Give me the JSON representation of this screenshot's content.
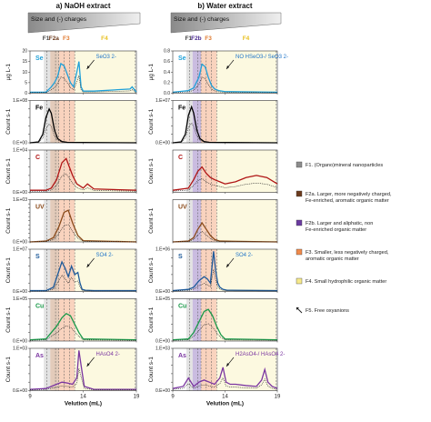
{
  "panels": [
    {
      "title": "a) NaOH extract",
      "size_bar_label": "Size and (-) charges"
    },
    {
      "title": "b) Water extract",
      "size_bar_label": "Size and (-) charges"
    }
  ],
  "fraction_labels": [
    "F1",
    "F2a",
    "F3",
    "F4",
    "F1",
    "F2b",
    "F3",
    "F4"
  ],
  "x_axis": {
    "label": "Velution (mL)",
    "ticks": [
      "9",
      "14",
      "19"
    ]
  },
  "legend": [
    {
      "key": "F1",
      "text": "F1. (Organo)mineral nanoparticles",
      "color": "#8c8c8c"
    },
    {
      "key": "F2a",
      "text": "F2a. Larger, more negatively charged, Fe-enriched, aromatic organic matter",
      "color": "#6b3a1c"
    },
    {
      "key": "F2b",
      "text": "F2b. Larger and aliphatic, non Fe-enriched organic matter",
      "color": "#6a3aa0"
    },
    {
      "key": "F3",
      "text": "F3. Smaller, less negatively charged, aromatic organic matter",
      "color": "#f08a4b"
    },
    {
      "key": "F4",
      "text": "F4. Small hydrophilic organic matter",
      "color": "#f6e98a"
    },
    {
      "key": "F5",
      "text": "F5. Free oxyanions",
      "color": "#222222"
    }
  ],
  "colors": {
    "Se": "#1fa0d8",
    "Fe": "#000000",
    "C": "#b01515",
    "UV": "#8a4a1a",
    "S": "#1e5a9a",
    "Cu": "#1a9a4a",
    "As": "#7a35a0",
    "F1_band": "#d9d9d9",
    "F2a_band": "#d9b9a3",
    "F2b_band": "#b8a6d6",
    "F3_band": "#f7c4a8",
    "F4_band": "#fbf7d6"
  },
  "chart_data": [
    {
      "type": "line",
      "title": "a) NaOH extract",
      "xlabel": "Velution (mL)",
      "xlim": [
        9,
        19
      ],
      "x_ticks": [
        9,
        14,
        19
      ],
      "rows": [
        {
          "element": "Se",
          "ylabel": "µg L-1",
          "yticks": [
            "0",
            "5",
            "10",
            "15",
            "20"
          ],
          "ylim": [
            0,
            20
          ],
          "annotation": "SeO3 2-",
          "x": [
            9,
            10.5,
            11.0,
            11.3,
            11.6,
            11.9,
            12.2,
            12.5,
            12.8,
            13.1,
            13.4,
            13.6,
            13.8,
            14.0,
            14.3,
            15,
            18.4,
            18.6,
            19
          ],
          "y": [
            0.5,
            0.5,
            3,
            5,
            8,
            14,
            13,
            9,
            5,
            3,
            10,
            15,
            3,
            1,
            1,
            1,
            2,
            3,
            0.5
          ]
        },
        {
          "element": "Fe",
          "ylabel": "Count s-1",
          "yticks": [
            "0.E+00",
            "2.E+08",
            "4.E+08",
            "6.E+08",
            "8.E+08",
            "1.E+08"
          ],
          "ylim": [
            0,
            1
          ],
          "x": [
            9,
            9.8,
            10.2,
            10.5,
            10.8,
            11.0,
            11.3,
            11.6,
            12.0,
            12.5,
            19
          ],
          "y": [
            0,
            0.02,
            0.2,
            0.6,
            0.8,
            0.7,
            0.3,
            0.1,
            0.03,
            0.01,
            0
          ]
        },
        {
          "element": "C",
          "ylabel": "Count s-1",
          "yticks": [
            "0.E+00",
            "2.E+02",
            "4.E+02",
            "6.E+02",
            "8.E+02",
            "1.E+04"
          ],
          "ylim": [
            0,
            1
          ],
          "x": [
            9,
            10.5,
            11.0,
            11.5,
            12.0,
            12.4,
            12.7,
            13.0,
            13.4,
            14.0,
            14.4,
            15,
            19
          ],
          "y": [
            0.05,
            0.05,
            0.1,
            0.3,
            0.7,
            0.8,
            0.6,
            0.4,
            0.2,
            0.1,
            0.2,
            0.08,
            0.05
          ]
        },
        {
          "element": "UV",
          "ylabel": "Count s-1",
          "yticks": [
            "0.E+00",
            "1.E+02",
            "2.E+02",
            "3.E+02",
            "4.E+02",
            "5.E+02",
            "6.E+02",
            "7.E+02",
            "8.E+02",
            "9.E+02",
            "1.E+03"
          ],
          "ylim": [
            0,
            1
          ],
          "x": [
            9,
            10.5,
            11.2,
            11.7,
            12.2,
            12.6,
            13.0,
            13.5,
            14.0,
            19
          ],
          "y": [
            0,
            0.02,
            0.1,
            0.35,
            0.7,
            0.75,
            0.45,
            0.15,
            0.03,
            0
          ]
        },
        {
          "element": "S",
          "ylabel": "Count s-1",
          "yticks": [
            "0.E+00",
            "2.E+06",
            "4.E+06",
            "6.E+06",
            "8.E+06",
            "1.E+07"
          ],
          "ylim": [
            0,
            1
          ],
          "annotation": "SO4 2-",
          "x": [
            9,
            10.5,
            11.2,
            11.6,
            12.0,
            12.3,
            12.6,
            12.9,
            13.2,
            13.5,
            13.7,
            13.9,
            14.2,
            15,
            19
          ],
          "y": [
            0.02,
            0.02,
            0.1,
            0.4,
            0.7,
            0.55,
            0.35,
            0.6,
            0.4,
            0.45,
            0.2,
            0.05,
            0.03,
            0.02,
            0.02
          ]
        },
        {
          "element": "Cu",
          "ylabel": "Count s-1",
          "yticks": [
            "0.E+00",
            "2.E+04",
            "4.E+04",
            "6.E+04",
            "8.E+04",
            "1.E+05"
          ],
          "ylim": [
            0,
            1
          ],
          "x": [
            9,
            10.5,
            11.0,
            11.5,
            12.0,
            12.4,
            12.8,
            13.2,
            13.6,
            14.0,
            19
          ],
          "y": [
            0.03,
            0.05,
            0.2,
            0.35,
            0.55,
            0.65,
            0.6,
            0.4,
            0.2,
            0.05,
            0.03
          ]
        },
        {
          "element": "As",
          "ylabel": "Count s-1",
          "yticks": [
            "0.E+00",
            "2.E+02",
            "4.E+02",
            "6.E+02",
            "8.E+02",
            "1.E+03"
          ],
          "ylim": [
            0,
            1
          ],
          "annotation": "HAsO4 2-",
          "x": [
            9,
            10.5,
            11.0,
            11.5,
            12.0,
            12.5,
            13.0,
            13.4,
            13.6,
            13.8,
            14.1,
            15,
            19
          ],
          "y": [
            0.03,
            0.05,
            0.1,
            0.15,
            0.2,
            0.18,
            0.15,
            0.3,
            0.95,
            0.6,
            0.1,
            0.03,
            0.03
          ]
        }
      ]
    },
    {
      "type": "line",
      "title": "b) Water extract",
      "xlabel": "Velution (mL)",
      "xlim": [
        9,
        19
      ],
      "x_ticks": [
        9,
        14,
        19
      ],
      "rows": [
        {
          "element": "Se",
          "ylabel": "µg L-1",
          "yticks": [
            "0.0",
            "0.2",
            "0.4",
            "0.6",
            "0.8"
          ],
          "ylim": [
            0,
            0.8
          ],
          "annotation": "NO HSeO3-/ SeO3 2-",
          "x": [
            9,
            10.5,
            11.0,
            11.5,
            11.8,
            12.1,
            12.4,
            12.7,
            13.0,
            13.4,
            14,
            19
          ],
          "y": [
            0.02,
            0.05,
            0.1,
            0.3,
            0.55,
            0.5,
            0.3,
            0.15,
            0.08,
            0.05,
            0.03,
            0.02
          ]
        },
        {
          "element": "Fe",
          "ylabel": "Count s-1",
          "yticks": [
            "0.E+00",
            "2.E+07",
            "4.E+07",
            "6.E+07",
            "8.E+07",
            "1.E+07"
          ],
          "ylim": [
            0,
            1
          ],
          "x": [
            9,
            9.8,
            10.2,
            10.5,
            10.8,
            11.0,
            11.3,
            11.6,
            12.0,
            12.5,
            19
          ],
          "y": [
            0,
            0.02,
            0.2,
            0.65,
            0.85,
            0.7,
            0.3,
            0.1,
            0.03,
            0.01,
            0
          ]
        },
        {
          "element": "C",
          "ylabel": "Count s-1",
          "yticks": [],
          "ylim": [
            0,
            1
          ],
          "x": [
            9,
            10.5,
            11.0,
            11.4,
            11.8,
            12.2,
            12.6,
            13.0,
            13.5,
            14.0,
            15.0,
            16.0,
            17.0,
            18.0,
            19
          ],
          "y": [
            0.05,
            0.1,
            0.3,
            0.5,
            0.6,
            0.45,
            0.35,
            0.3,
            0.25,
            0.2,
            0.25,
            0.35,
            0.4,
            0.35,
            0.2
          ]
        },
        {
          "element": "UV",
          "ylabel": "Count s-1",
          "yticks": [],
          "ylim": [
            0,
            1
          ],
          "x": [
            9,
            10.5,
            11.0,
            11.4,
            11.8,
            12.2,
            12.6,
            13.0,
            13.5,
            19
          ],
          "y": [
            0,
            0.02,
            0.1,
            0.3,
            0.45,
            0.3,
            0.15,
            0.06,
            0.02,
            0
          ]
        },
        {
          "element": "S",
          "ylabel": "Count s-1",
          "yticks": [
            "0.E+00",
            "2.E+06",
            "4.E+06",
            "6.E+06",
            "8.E+06",
            "1.E+06"
          ],
          "ylim": [
            0,
            1
          ],
          "annotation": "SO4 2-",
          "x": [
            9,
            10.5,
            11.0,
            11.5,
            12.0,
            12.3,
            12.6,
            12.9,
            13.1,
            13.3,
            13.5,
            13.8,
            14.2,
            19
          ],
          "y": [
            0.02,
            0.05,
            0.1,
            0.25,
            0.35,
            0.3,
            0.2,
            0.95,
            0.5,
            0.2,
            0.1,
            0.05,
            0.03,
            0.02
          ]
        },
        {
          "element": "Cu",
          "ylabel": "Count s-1",
          "yticks": [
            "0.E+00",
            "2.E+04",
            "4.E+04",
            "6.E+04",
            "8.E+04",
            "1.E+05"
          ],
          "ylim": [
            0,
            1
          ],
          "x": [
            9,
            10.5,
            11.0,
            11.5,
            12.0,
            12.4,
            12.8,
            13.2,
            13.6,
            14.0,
            19
          ],
          "y": [
            0.03,
            0.05,
            0.2,
            0.45,
            0.7,
            0.75,
            0.6,
            0.35,
            0.15,
            0.05,
            0.03
          ]
        },
        {
          "element": "As",
          "ylabel": "Count s-1",
          "yticks": [
            "0.E+00",
            "2.E+02",
            "4.E+02",
            "6.E+02",
            "8.E+02",
            "1.E+03"
          ],
          "ylim": [
            0,
            1
          ],
          "annotation": "H2AsO4-/ HAsO4 2-",
          "x": [
            9,
            10.0,
            10.5,
            11.0,
            11.5,
            12.0,
            12.5,
            13.0,
            13.5,
            13.8,
            14.1,
            14.5,
            15.0,
            16.0,
            17.0,
            17.5,
            17.8,
            18.1,
            18.5,
            19
          ],
          "y": [
            0.05,
            0.1,
            0.3,
            0.1,
            0.2,
            0.25,
            0.2,
            0.15,
            0.3,
            0.55,
            0.2,
            0.15,
            0.15,
            0.12,
            0.1,
            0.25,
            0.5,
            0.2,
            0.1,
            0.05
          ]
        }
      ]
    }
  ]
}
